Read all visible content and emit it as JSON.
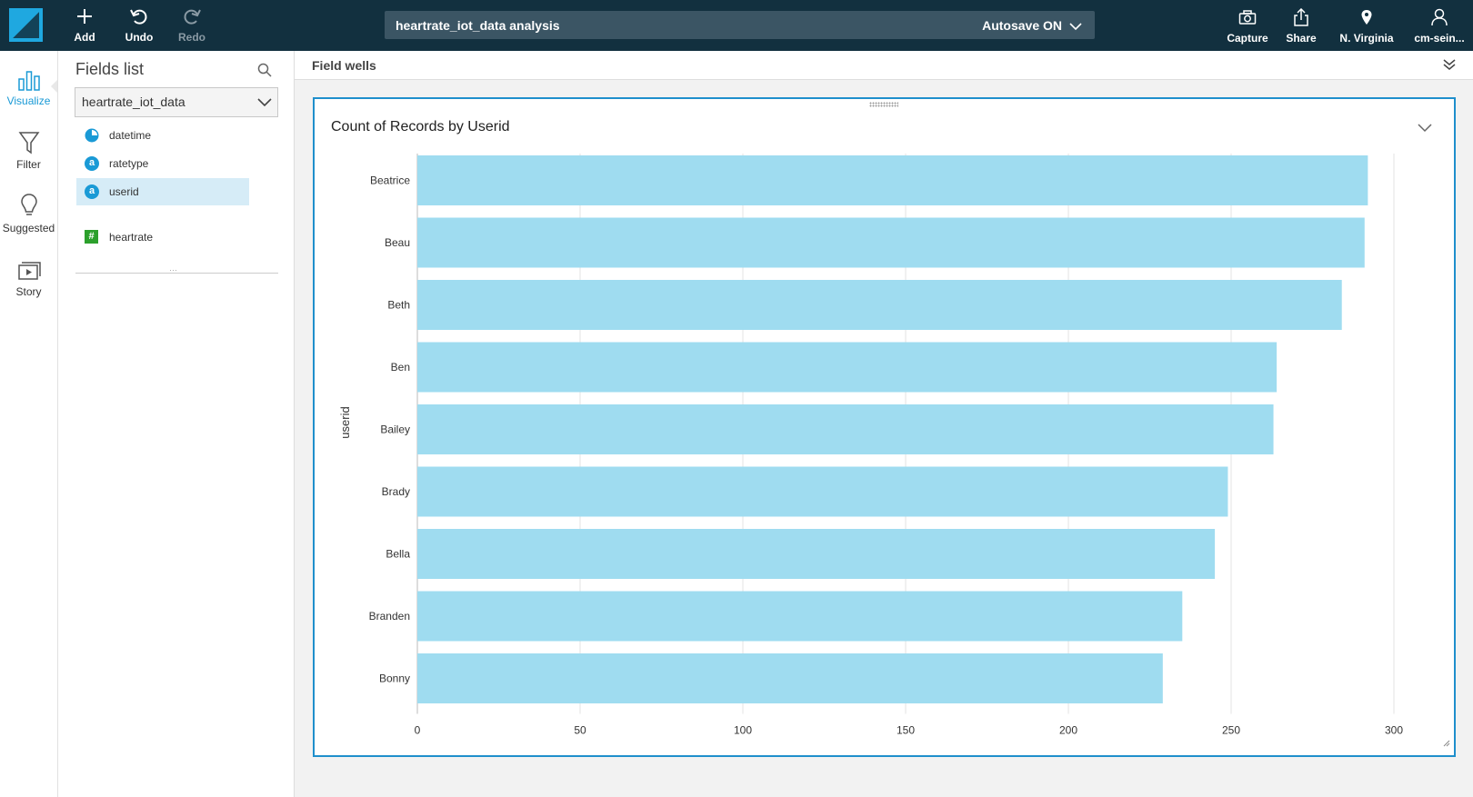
{
  "toolbar": {
    "add": "Add",
    "undo": "Undo",
    "redo": "Redo",
    "analysis_title": "heartrate_iot_data analysis",
    "autosave": "Autosave ON",
    "capture": "Capture",
    "share": "Share",
    "region": "N. Virginia",
    "user": "cm-sein..."
  },
  "rail": {
    "visualize": "Visualize",
    "filter": "Filter",
    "suggested": "Suggested",
    "story": "Story"
  },
  "fields_panel": {
    "title": "Fields list",
    "dataset": "heartrate_iot_data",
    "dimensions": [
      {
        "name": "datetime",
        "type": "date"
      },
      {
        "name": "ratetype",
        "type": "string"
      },
      {
        "name": "userid",
        "type": "string",
        "selected": true
      }
    ],
    "measures": [
      {
        "name": "heartrate",
        "type": "number"
      }
    ]
  },
  "field_wells": {
    "title": "Field wells"
  },
  "colors": {
    "topbar": "#12303f",
    "accent": "#1a9ad6",
    "bar": "#9fdcf0"
  },
  "chart_data": {
    "type": "bar",
    "orientation": "horizontal",
    "title": "Count of Records by Userid",
    "ylabel": "userid",
    "xlabel": "",
    "categories": [
      "Beatrice",
      "Beau",
      "Beth",
      "Ben",
      "Bailey",
      "Brady",
      "Bella",
      "Branden",
      "Bonny"
    ],
    "values": [
      292,
      291,
      284,
      264,
      263,
      249,
      245,
      235,
      229
    ],
    "xlim": [
      0,
      300
    ],
    "xticks": [
      0,
      50,
      100,
      150,
      200,
      250,
      300
    ],
    "grid": true
  }
}
